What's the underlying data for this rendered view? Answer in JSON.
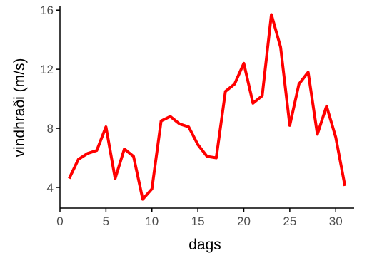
{
  "chart_data": {
    "type": "line",
    "title": "",
    "xlabel": "dags",
    "ylabel": "vindhraði (m/s)",
    "x": [
      1,
      2,
      3,
      4,
      5,
      6,
      7,
      8,
      9,
      10,
      11,
      12,
      13,
      14,
      15,
      16,
      17,
      18,
      19,
      20,
      21,
      22,
      23,
      24,
      25,
      26,
      27,
      28,
      29,
      30,
      31
    ],
    "series": [
      {
        "values": [
          4.6,
          5.9,
          6.3,
          6.5,
          8.1,
          4.6,
          6.6,
          6.1,
          3.2,
          3.9,
          8.5,
          8.8,
          8.3,
          8.1,
          6.9,
          6.1,
          6.0,
          10.5,
          11.0,
          12.4,
          9.7,
          10.2,
          15.7,
          13.5,
          8.2,
          11.0,
          11.8,
          7.6,
          9.5,
          7.4,
          4.1
        ],
        "color": "#ff0000"
      }
    ],
    "xlim": [
      0,
      32
    ],
    "ylim": [
      2.6,
      16.3
    ],
    "xticks": [
      0,
      5,
      10,
      15,
      20,
      25,
      30
    ],
    "yticks": [
      4,
      8,
      12,
      16
    ],
    "xtick_labels": [
      "0",
      "5",
      "10",
      "15",
      "20",
      "25",
      "30"
    ],
    "ytick_labels": [
      "4",
      "8",
      "12",
      "16"
    ],
    "grid": false,
    "axis_color": "#000000",
    "tick_label_color": "#4d4d4d"
  }
}
